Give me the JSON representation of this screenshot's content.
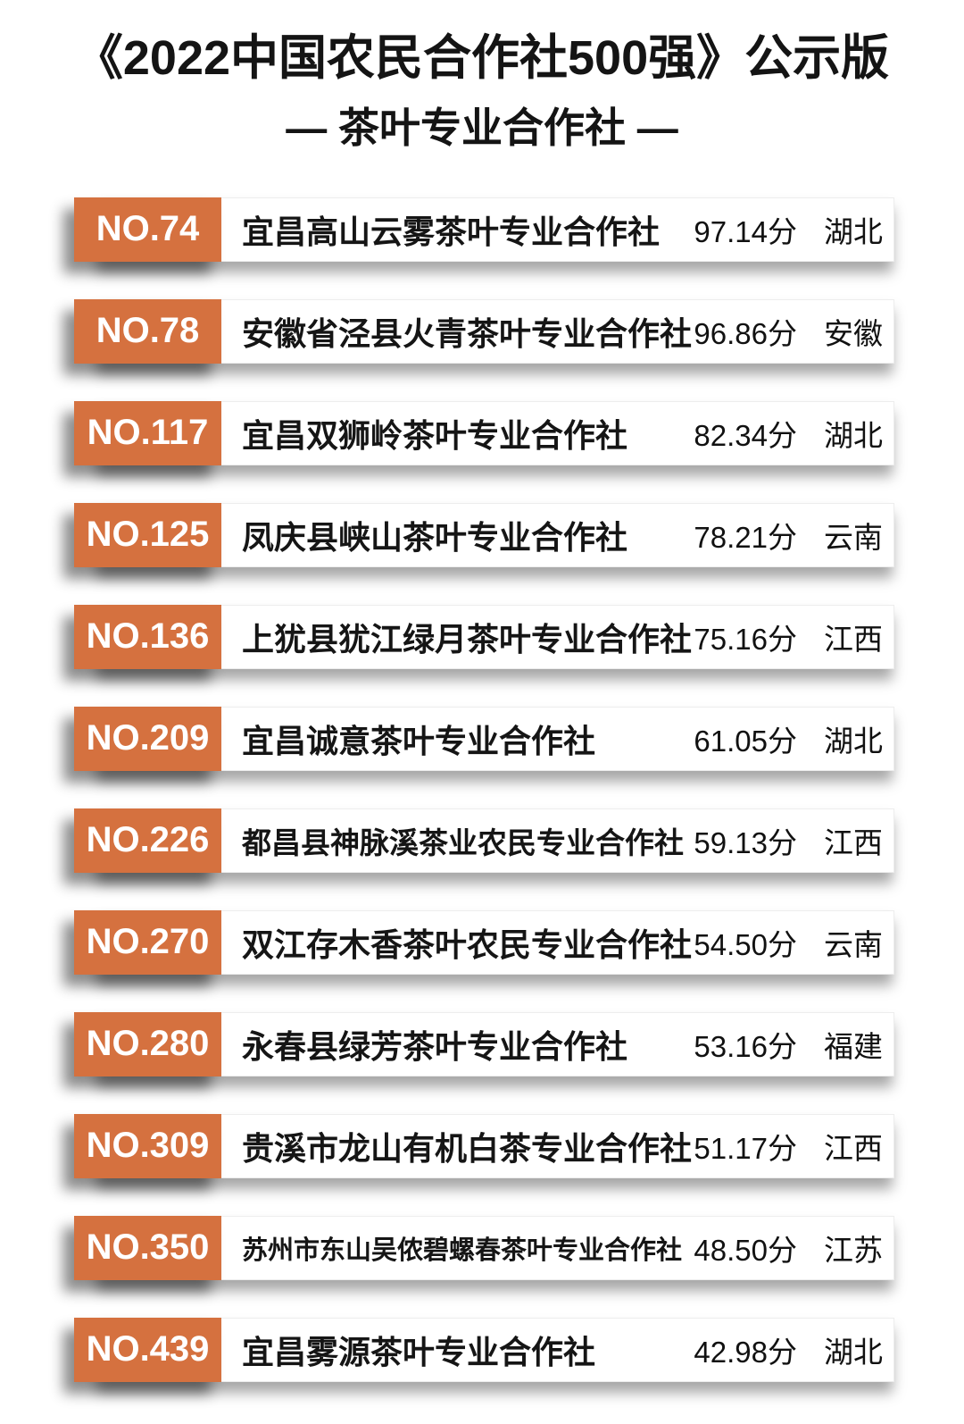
{
  "header": {
    "title": "《2022中国农民合作社500强》公示版",
    "subtitle": "— 茶叶专业合作社 —"
  },
  "colors": {
    "badge_background": "#d5713f",
    "badge_text": "#ffffff",
    "body_text": "#111111",
    "page_background": "#ffffff"
  },
  "list": {
    "score_suffix": "分",
    "items": [
      {
        "rank": "NO.74",
        "name": "宜昌高山云雾茶叶专业合作社",
        "score": "97.14分",
        "province": "湖北"
      },
      {
        "rank": "NO.78",
        "name": "安徽省泾县火青茶叶专业合作社",
        "score": "96.86分",
        "province": "安徽"
      },
      {
        "rank": "NO.117",
        "name": "宜昌双狮岭茶叶专业合作社",
        "score": "82.34分",
        "province": "湖北"
      },
      {
        "rank": "NO.125",
        "name": "凤庆县峡山茶叶专业合作社",
        "score": "78.21分",
        "province": "云南"
      },
      {
        "rank": "NO.136",
        "name": "上犹县犹江绿月茶叶专业合作社",
        "score": "75.16分",
        "province": "江西"
      },
      {
        "rank": "NO.209",
        "name": "宜昌诚意茶叶专业合作社",
        "score": "61.05分",
        "province": "湖北"
      },
      {
        "rank": "NO.226",
        "name": "都昌县神脉溪茶业农民专业合作社",
        "score": "59.13分",
        "province": "江西"
      },
      {
        "rank": "NO.270",
        "name": "双江存木香茶叶农民专业合作社",
        "score": "54.50分",
        "province": "云南"
      },
      {
        "rank": "NO.280",
        "name": "永春县绿芳茶叶专业合作社",
        "score": "53.16分",
        "province": "福建"
      },
      {
        "rank": "NO.309",
        "name": "贵溪市龙山有机白茶专业合作社",
        "score": "51.17分",
        "province": "江西"
      },
      {
        "rank": "NO.350",
        "name": "苏州市东山吴侬碧螺春茶叶专业合作社",
        "score": "48.50分",
        "province": "江苏"
      },
      {
        "rank": "NO.439",
        "name": "宜昌雾源茶叶专业合作社",
        "score": "42.98分",
        "province": "湖北"
      }
    ]
  }
}
